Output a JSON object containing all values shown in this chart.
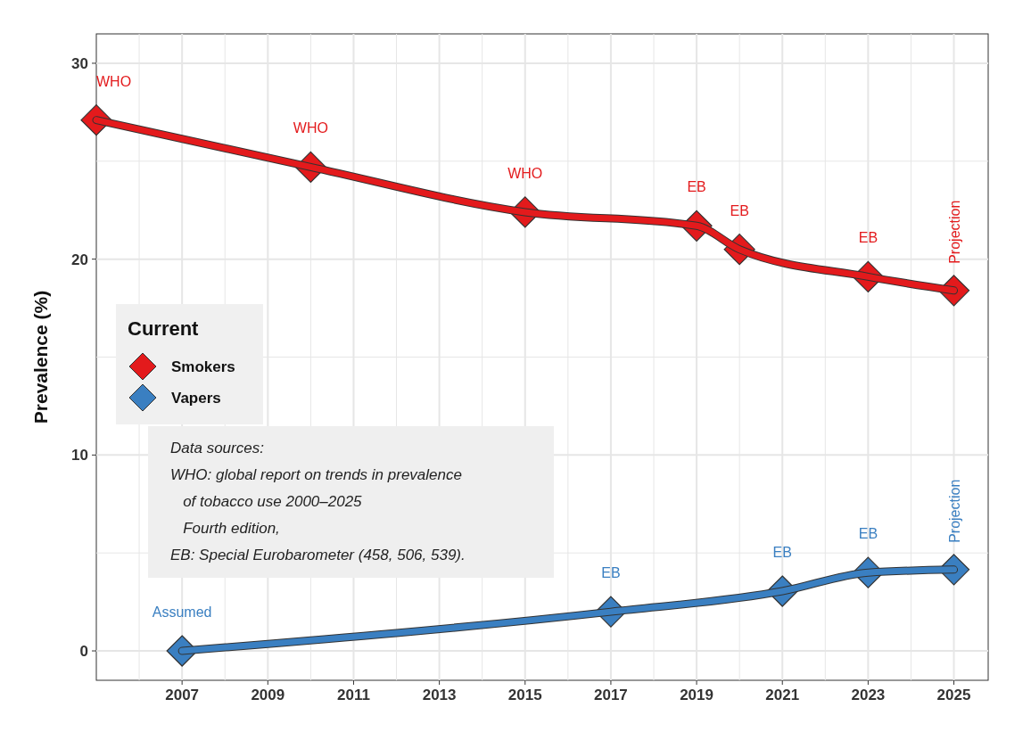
{
  "chart_data": {
    "type": "line",
    "ylabel": "Prevalence (%)",
    "legend_title": "Current",
    "legend": "left",
    "grid": true,
    "marker": "diamond",
    "line_style": "solid",
    "xlim": [
      2005,
      2025.8
    ],
    "xticks": [
      {
        "value": 2006,
        "label": null
      },
      2007,
      {
        "value": 2008,
        "label": null
      },
      2009,
      {
        "value": 2010,
        "label": null
      },
      2011,
      {
        "value": 2012,
        "label": null
      },
      2013,
      {
        "value": 2014,
        "label": null
      },
      2015,
      {
        "value": 2016,
        "label": null
      },
      2017,
      {
        "value": 2018,
        "label": null
      },
      2019,
      {
        "value": 2020,
        "label": null
      },
      2021,
      {
        "value": 2022,
        "label": null
      },
      2023,
      {
        "value": 2024,
        "label": null
      },
      2025
    ],
    "ylim": [
      -1.5,
      31.5
    ],
    "yticks": [
      0,
      {
        "value": 5,
        "label": null
      },
      10,
      {
        "value": 15,
        "label": null
      },
      20,
      {
        "value": 25,
        "label": null
      },
      30
    ],
    "series": [
      {
        "name": "Smokers",
        "color": "#e31a1c",
        "x": [
          2005,
          2010,
          2015,
          2019,
          2020,
          2023,
          2025
        ],
        "values": [
          27.1,
          24.7,
          22.4,
          21.7,
          20.5,
          19.1,
          18.4
        ]
      },
      {
        "name": "Vapers",
        "color": "#3a7fc1",
        "x": [
          2007,
          2017,
          2021,
          2023,
          2025
        ],
        "values": [
          0,
          2.0,
          3.05,
          4.0,
          4.15
        ]
      }
    ],
    "annotations": [
      {
        "text": "WHO",
        "x": 2005,
        "y": 27.1
      },
      {
        "text": "WHO",
        "x": 2010,
        "y": 24.7
      },
      {
        "text": "WHO",
        "x": 2015,
        "y": 22.4
      },
      {
        "text": "EB",
        "x": 2019,
        "y": 21.7
      },
      {
        "text": "EB",
        "x": 2020,
        "y": 20.5
      },
      {
        "text": "EB",
        "x": 2023,
        "y": 19.1
      },
      {
        "text": "Projection",
        "x": 2025,
        "y": 18.4
      },
      {
        "text": "Assumed",
        "x": 2007,
        "y": 0
      },
      {
        "text": "EB",
        "x": 2017,
        "y": 2.0
      },
      {
        "text": "EB",
        "x": 2021,
        "y": 3.05
      },
      {
        "text": "EB",
        "x": 2023,
        "y": 4.0
      },
      {
        "text": "Projection",
        "x": 2025,
        "y": 4.15
      },
      "Data sources:\nWHO: global report on trends in prevalence\n   of tobacco use 2000–2025\n   Fourth edition,\nEB: Special Eurobarometer (458, 506, 539)."
    ]
  }
}
